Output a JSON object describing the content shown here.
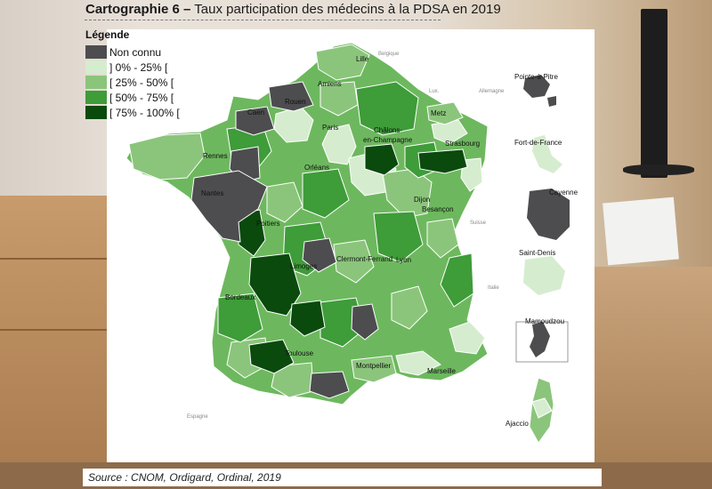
{
  "title": {
    "number": "Cartographie 6 –",
    "text": "Taux participation des médecins à la PDSA en 2019"
  },
  "legend": {
    "title": "Légende",
    "items": [
      {
        "label": "Non connu",
        "color": "#4d4d4f"
      },
      {
        "label": "] 0% - 25% [",
        "color": "#d6eccf"
      },
      {
        "label": "[ 25% - 50% [",
        "color": "#8bc57b"
      },
      {
        "label": "[ 50% - 75% [",
        "color": "#3e9c39"
      },
      {
        "label": "[ 75% - 100% [",
        "color": "#0a4a0d"
      }
    ]
  },
  "cities": {
    "lille": "Lille",
    "amiens": "Amiens",
    "rouen": "Rouen",
    "caen": "Caen",
    "paris": "Paris",
    "chalons1": "Châlons-",
    "chalons2": "en-Champagne",
    "metz": "Metz",
    "strasbourg": "Strasbourg",
    "rennes": "Rennes",
    "orleans": "Orléans",
    "nantes": "Nantes",
    "dijon": "Dijon",
    "besancon": "Besançon",
    "poitiers": "Poitiers",
    "limoges": "Limoges",
    "clermont": "Clermont-Ferrand",
    "lyon": "Lyon",
    "bordeaux": "Bordeaux",
    "toulouse": "Toulouse",
    "montpellier": "Montpellier",
    "marseille": "Marseille",
    "ajaccio": "Ajaccio",
    "pointe_a_pitre": "Pointe-à-Pitre",
    "fort_de_france": "Fort-de-France",
    "cayenne": "Cayenne",
    "saint_denis": "Saint-Denis",
    "mamoudzou": "Mamoudzou"
  },
  "countries": {
    "belgique": "Belgique",
    "lux": "Lux.",
    "allemagne": "Allemagne",
    "suisse": "Suisse",
    "italie": "Italie",
    "espagne": "Espagne"
  },
  "source": "Source : CNOM, Ordigard, Ordinal, 2019"
}
